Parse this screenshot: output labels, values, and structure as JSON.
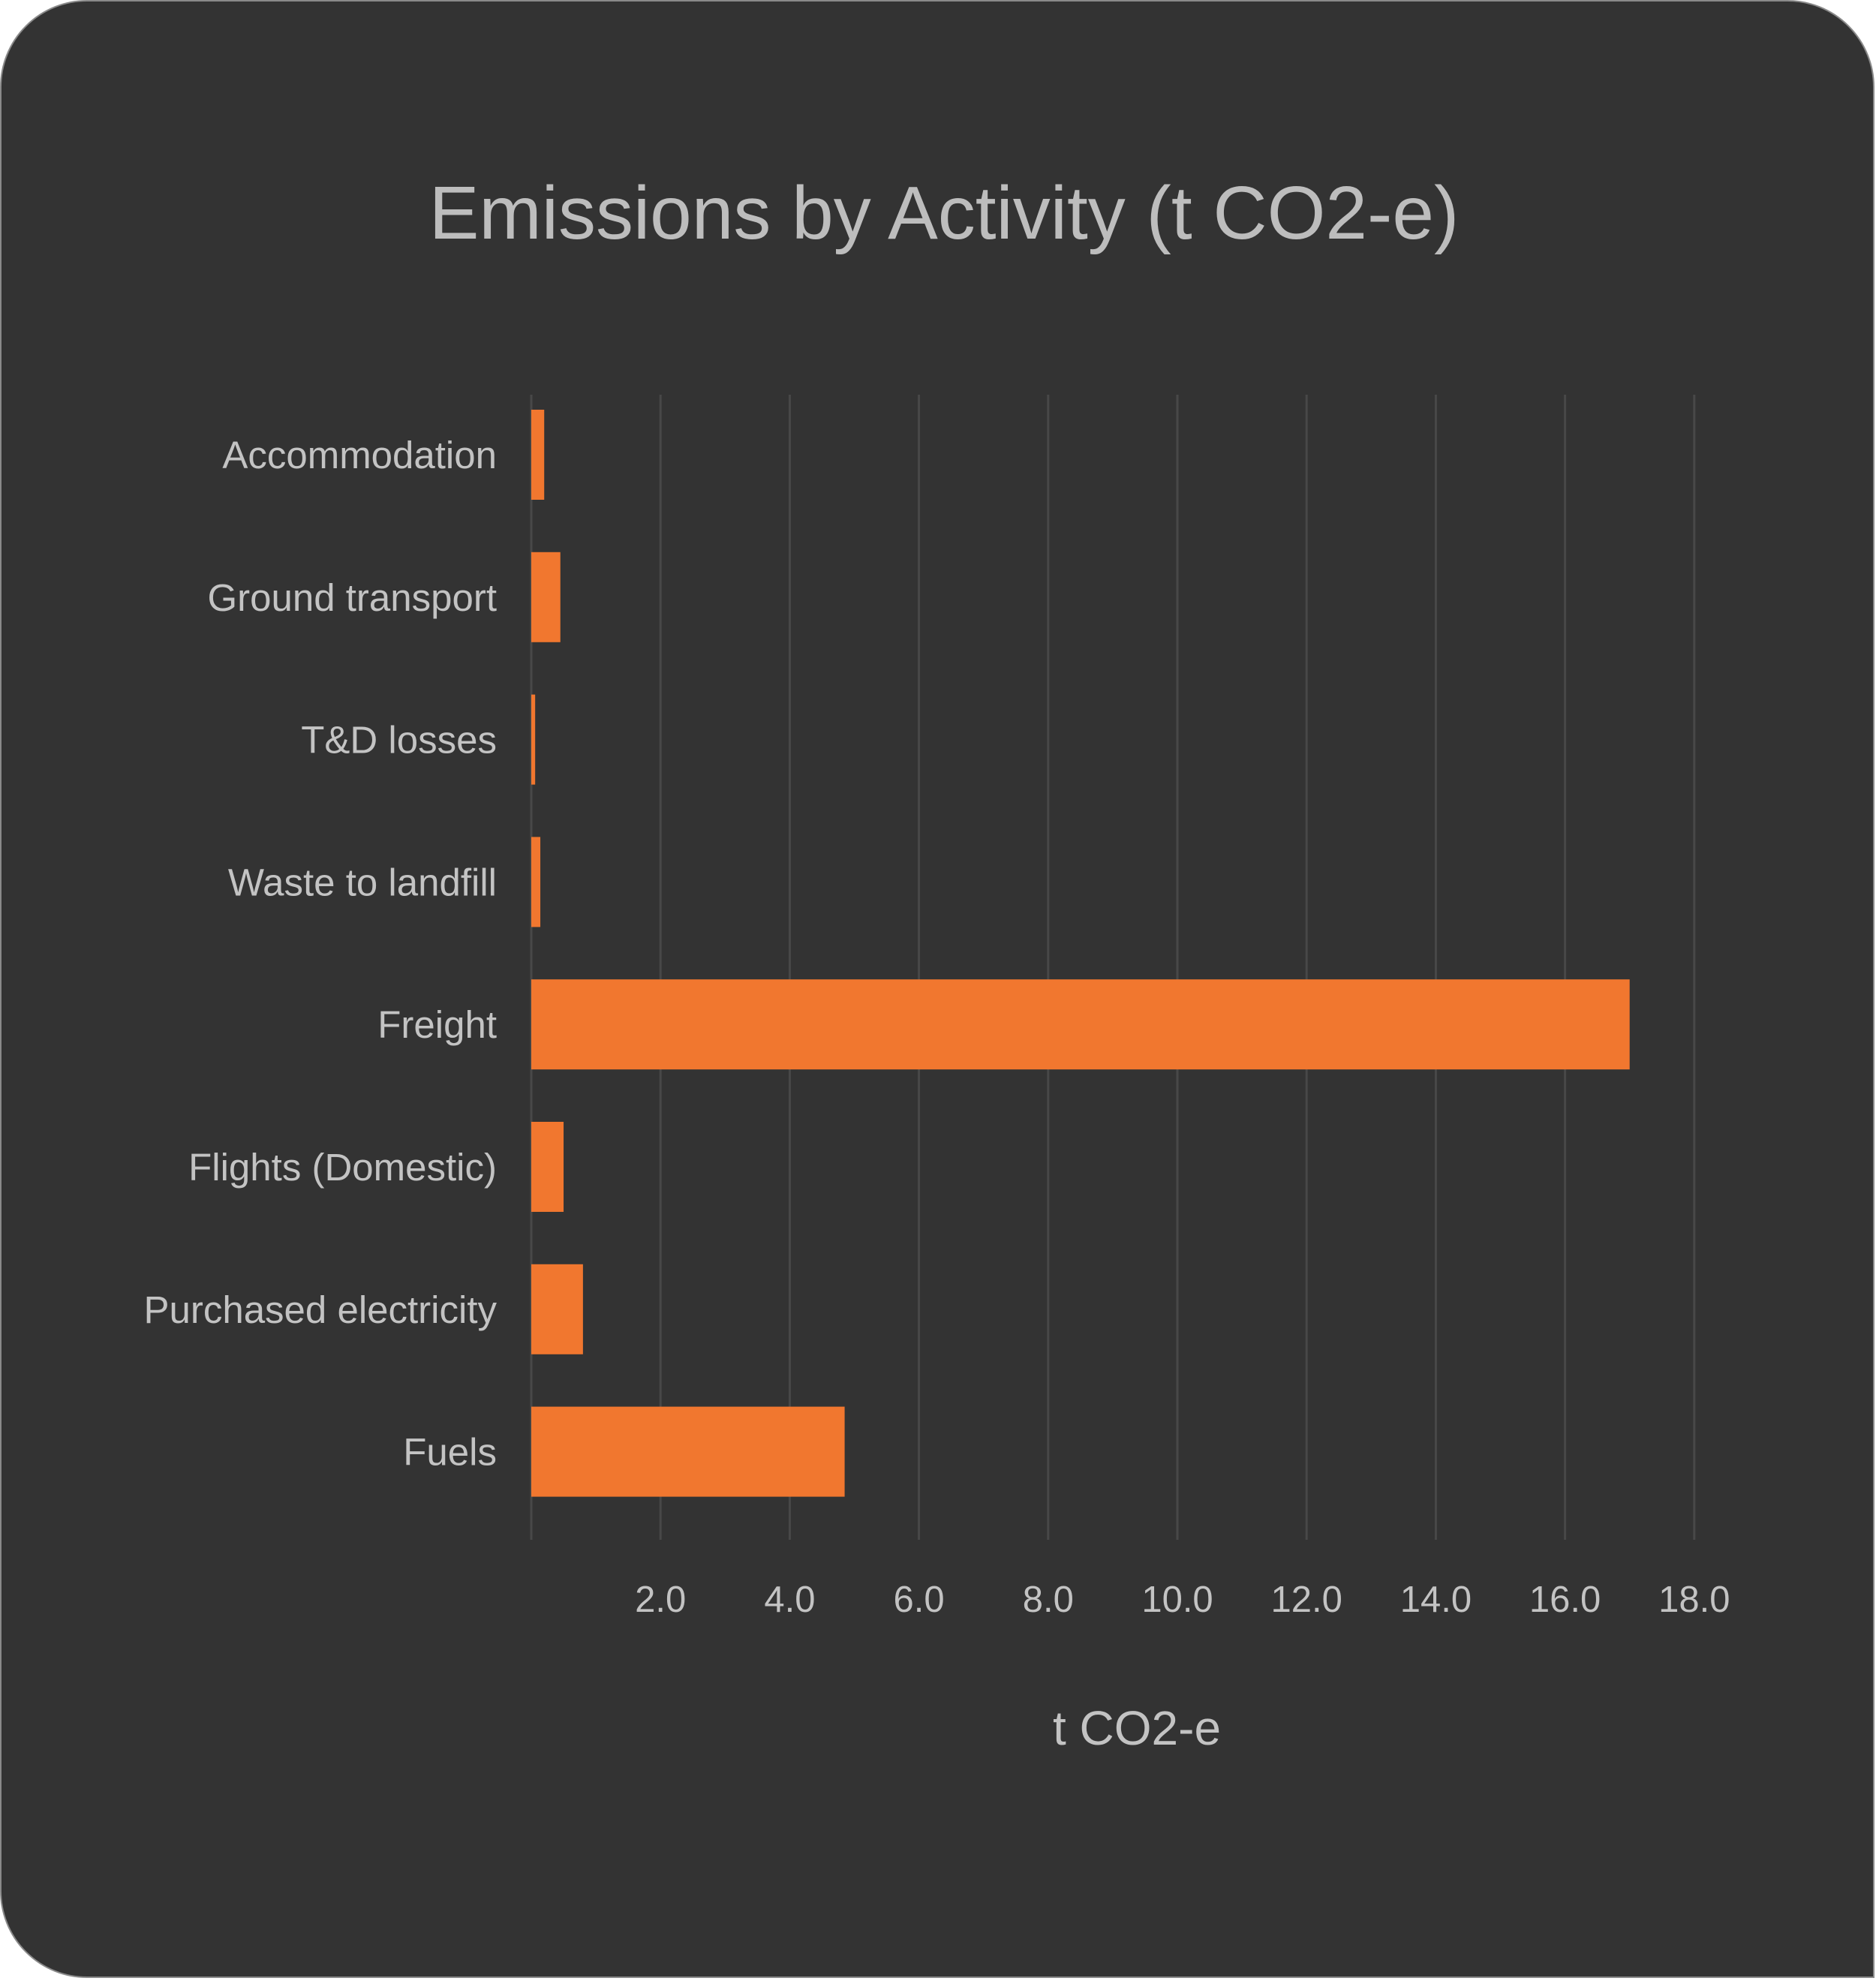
{
  "chart_data": {
    "type": "bar",
    "orientation": "horizontal",
    "title": "Emissions by Activity (t CO2-e)",
    "xlabel": "t CO2-e",
    "ylabel": "",
    "categories": [
      "Accommodation",
      "Ground transport",
      "T&D losses",
      "Waste to landfill",
      "Freight",
      "Flights (Domestic)",
      "Purchased electricity",
      "Fuels"
    ],
    "values": [
      0.2,
      0.45,
      0.06,
      0.14,
      17.0,
      0.5,
      0.8,
      4.85
    ],
    "xlim": [
      0,
      18
    ],
    "x_ticks": [
      "2.0",
      "4.0",
      "6.0",
      "8.0",
      "10.0",
      "12.0",
      "14.0",
      "16.0",
      "18.0"
    ],
    "grid": "vertical",
    "legend": "none"
  },
  "colors": {
    "background": "#333333",
    "bar": "#f1772f",
    "grid": "#484848",
    "text": "#c3c3c3"
  }
}
